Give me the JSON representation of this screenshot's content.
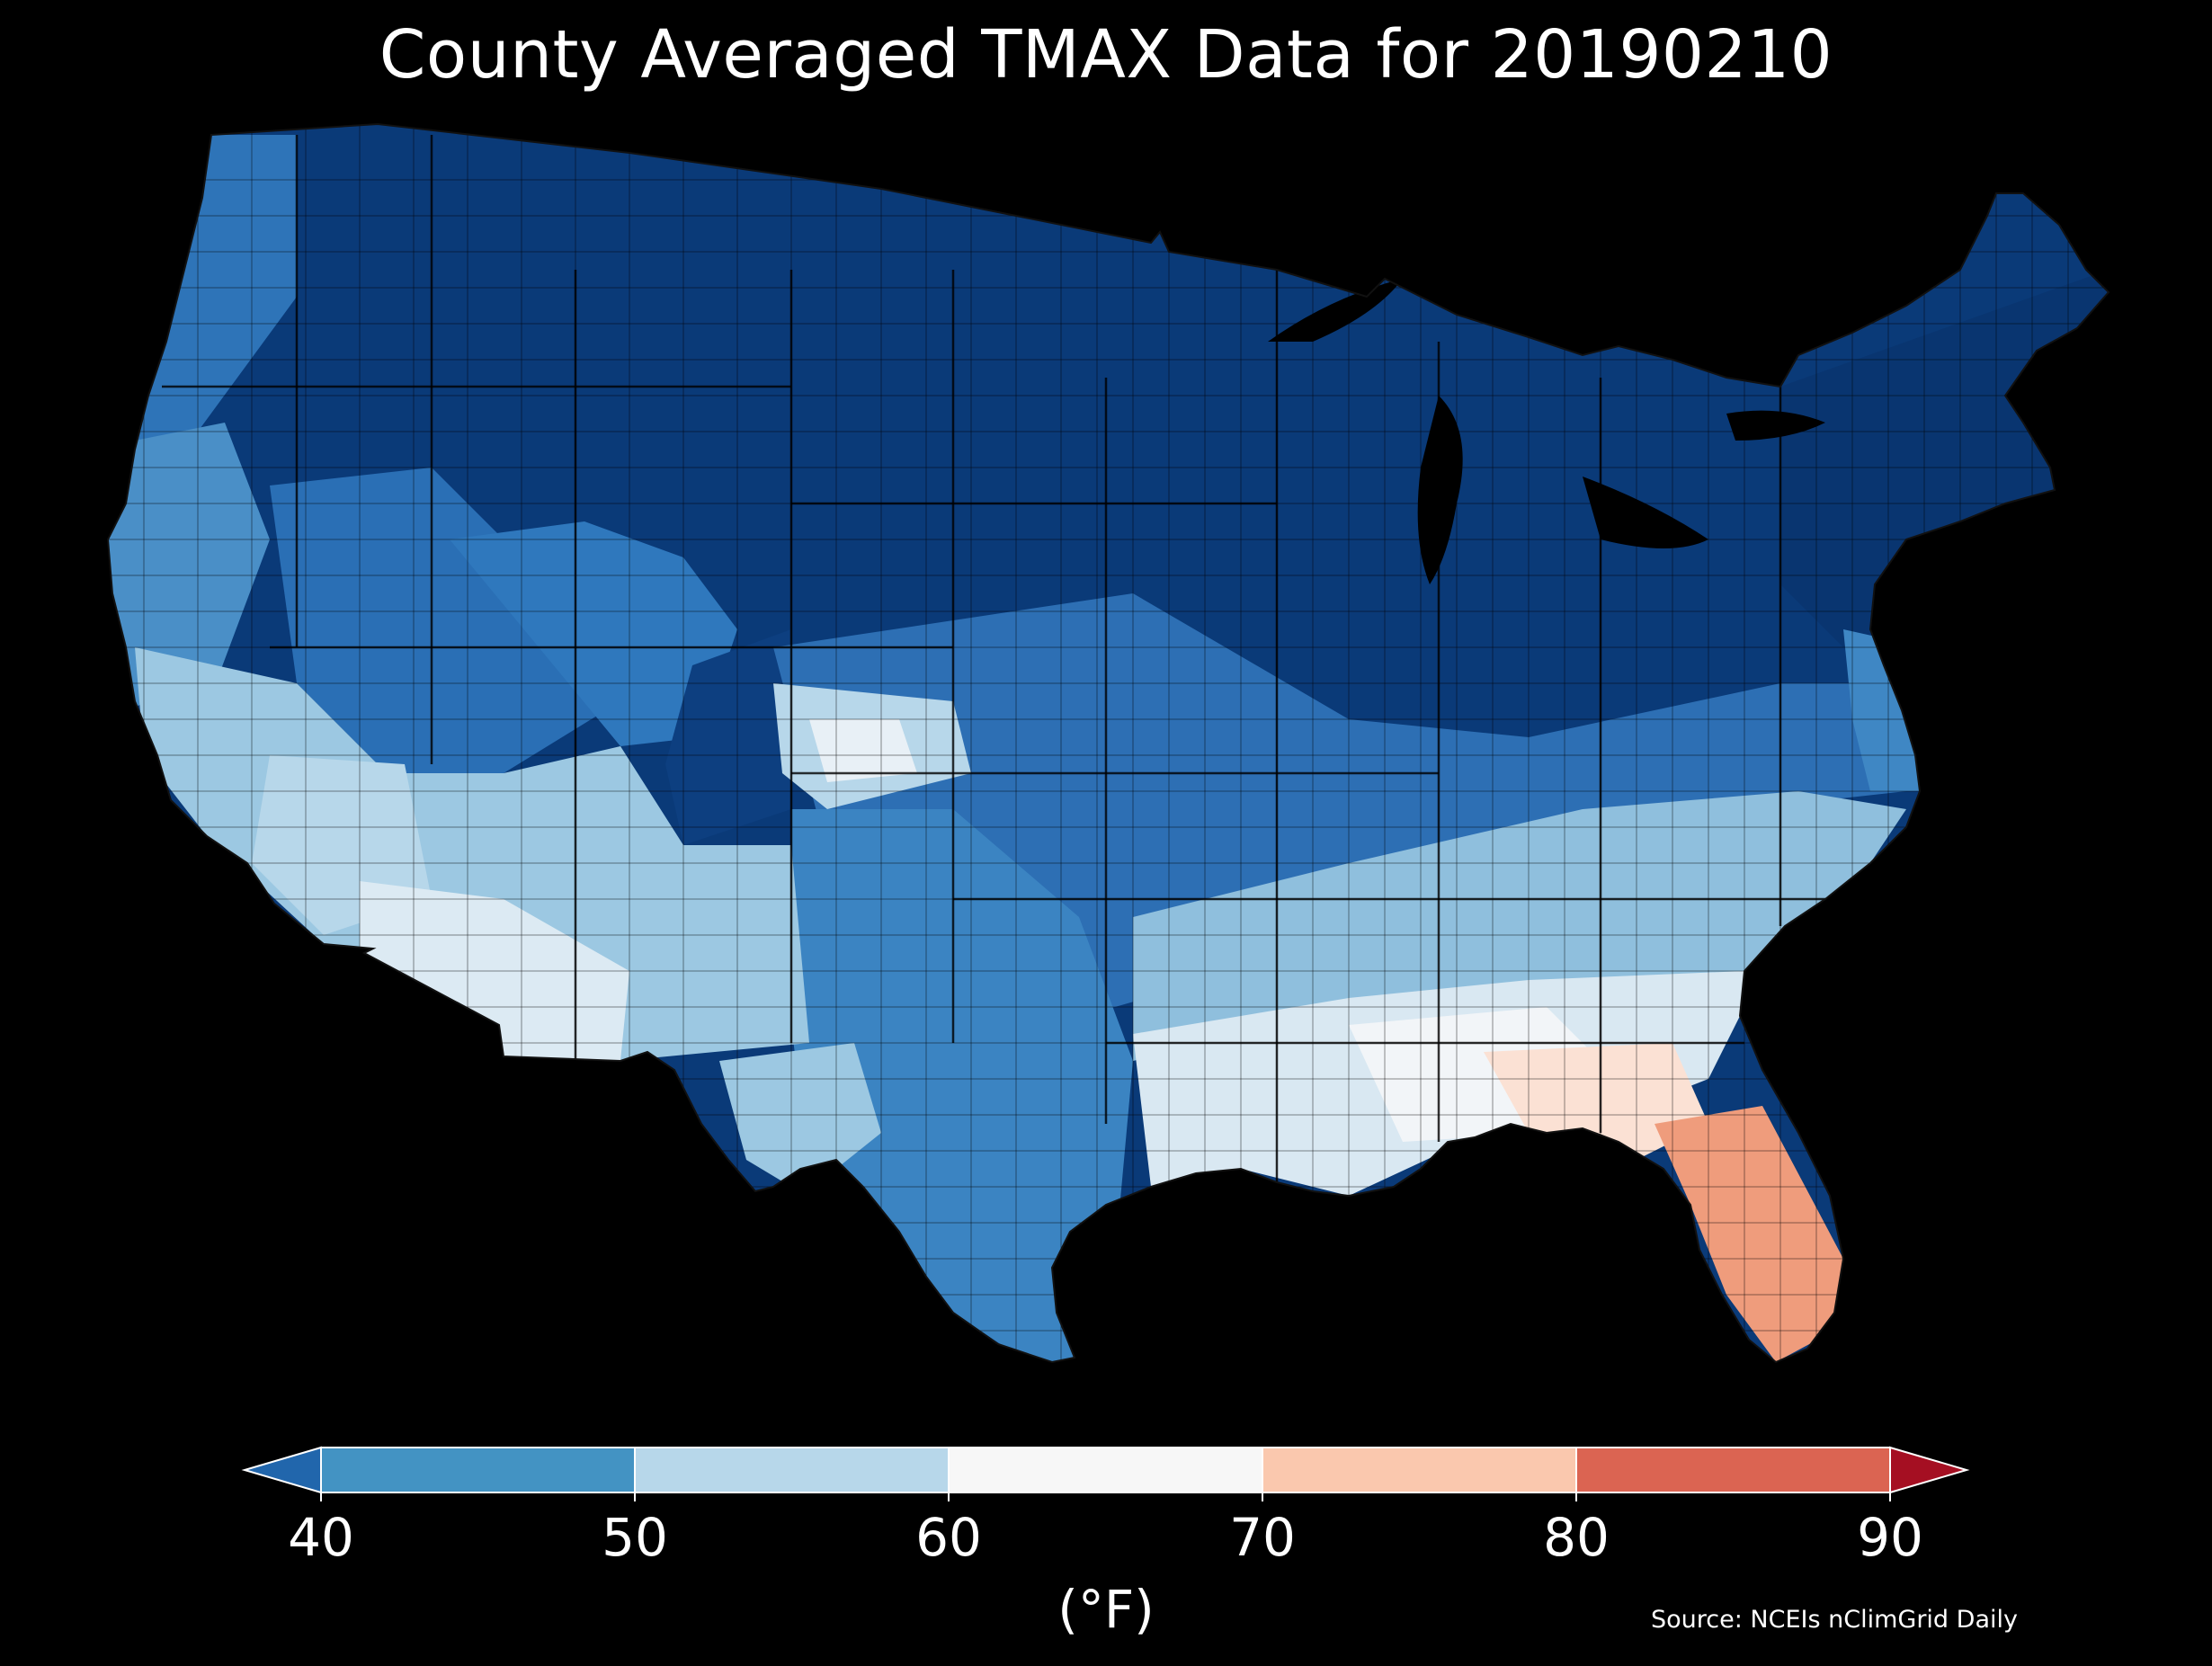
{
  "title": "County Averaged TMAX Data for 20190210",
  "colorbar": {
    "label": "(°F)",
    "ticks": [
      "40",
      "50",
      "60",
      "70",
      "80",
      "90"
    ],
    "bins": [
      {
        "from": 40,
        "to": 50,
        "color": "#4393c3"
      },
      {
        "from": 50,
        "to": 60,
        "color": "#b7d7ea"
      },
      {
        "from": 60,
        "to": 70,
        "color": "#f7f7f7"
      },
      {
        "from": 70,
        "to": 80,
        "color": "#fac8ae"
      },
      {
        "from": 80,
        "to": 90,
        "color": "#db6452"
      }
    ],
    "under_color": "#2166ac",
    "over_color": "#a50f22"
  },
  "source": "Source: NCEIs nClimGrid Daily",
  "colors": {
    "background": "#000000",
    "county_border": "#000000",
    "coldest": "#08306b",
    "cold": "#0f4a8a",
    "mid_blue": "#2a6fb5",
    "blue": "#4a8fc7",
    "light_blue": "#a9cfe6",
    "pale": "#dceaf3",
    "near_white": "#f2f5f8",
    "warm": "#f6b89c",
    "warmer": "#ef9c7c"
  }
}
